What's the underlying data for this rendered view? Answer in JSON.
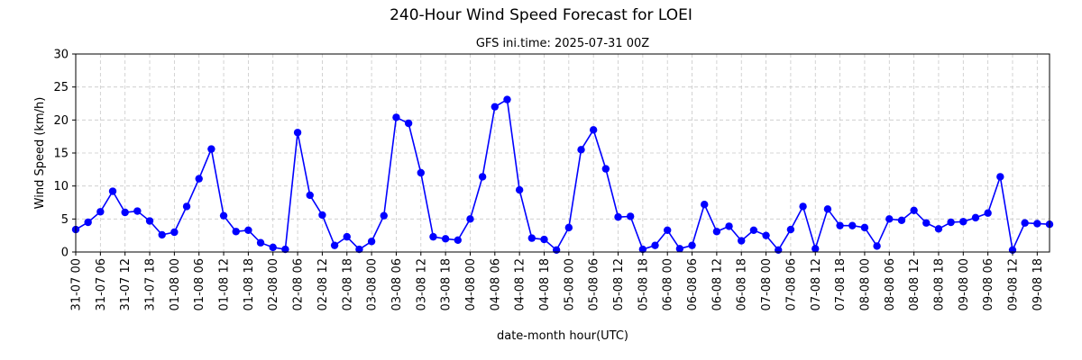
{
  "chart_data": {
    "type": "line",
    "title": "240-Hour Wind Speed Forecast for LOEI",
    "subtitle": "GFS ini.time: 2025-07-31 00Z",
    "xlabel": "date-month hour(UTC)",
    "ylabel": "Wind Speed (km/h)",
    "ylim": [
      0,
      30
    ],
    "yticks": [
      0,
      5,
      10,
      15,
      20,
      25,
      30
    ],
    "grid": true,
    "line_color": "#0000ff",
    "marker_color": "#0000ff",
    "grid_color": "#c8c8c8",
    "x_tick_labels": [
      "31-07 00",
      "31-07 06",
      "31-07 12",
      "31-07 18",
      "01-08 00",
      "01-08 06",
      "01-08 12",
      "01-08 18",
      "02-08 00",
      "02-08 06",
      "02-08 12",
      "02-08 18",
      "03-08 00",
      "03-08 06",
      "03-08 12",
      "03-08 18",
      "04-08 00",
      "04-08 06",
      "04-08 12",
      "04-08 18",
      "05-08 00",
      "05-08 06",
      "05-08 12",
      "05-08 18",
      "06-08 00",
      "06-08 06",
      "06-08 12",
      "06-08 18",
      "07-08 00",
      "07-08 06",
      "07-08 12",
      "07-08 18",
      "08-08 00",
      "08-08 06",
      "08-08 12",
      "08-08 18",
      "09-08 00",
      "09-08 06",
      "09-08 12",
      "09-08 18"
    ],
    "series": [
      {
        "x_hours": [
          0,
          3,
          6,
          9,
          12,
          15,
          18,
          21,
          24,
          27,
          30,
          33,
          36,
          39,
          42,
          45,
          48,
          51,
          54,
          57,
          60,
          63,
          66,
          69,
          72,
          75,
          78,
          81,
          84,
          87,
          90,
          93,
          96,
          99,
          102,
          105,
          108,
          111,
          114,
          117,
          120,
          123,
          126,
          129,
          132,
          135,
          138,
          141,
          144,
          147,
          150,
          153,
          156,
          159,
          162,
          165,
          168,
          171,
          174,
          177,
          180,
          183,
          186,
          189,
          192,
          195,
          198,
          201,
          204,
          207,
          210,
          213,
          216,
          219,
          222,
          225,
          228,
          231,
          234,
          237
        ],
        "values": [
          3.4,
          4.5,
          6.1,
          9.2,
          6.0,
          6.2,
          4.7,
          2.6,
          3.0,
          6.9,
          11.1,
          15.6,
          5.5,
          3.1,
          3.3,
          1.4,
          0.7,
          0.4,
          18.1,
          8.6,
          5.6,
          1.0,
          2.3,
          0.4,
          1.6,
          5.5,
          20.4,
          19.5,
          12.0,
          2.3,
          2.0,
          1.8,
          5.0,
          11.4,
          22.0,
          23.1,
          9.4,
          2.1,
          1.9,
          0.3,
          3.7,
          15.5,
          18.5,
          12.6,
          5.3,
          5.4,
          0.4,
          1.0,
          3.3,
          0.5,
          1.0,
          7.2,
          3.1,
          3.9,
          1.7,
          3.3,
          2.5,
          0.3,
          3.4,
          6.9,
          0.5,
          6.5,
          4.0,
          4.0,
          3.7,
          0.9,
          5.0,
          4.8,
          6.3,
          4.4,
          3.5,
          4.5,
          4.6,
          5.2,
          5.9,
          11.4,
          0.3,
          4.4,
          4.3,
          4.2
        ]
      }
    ]
  }
}
